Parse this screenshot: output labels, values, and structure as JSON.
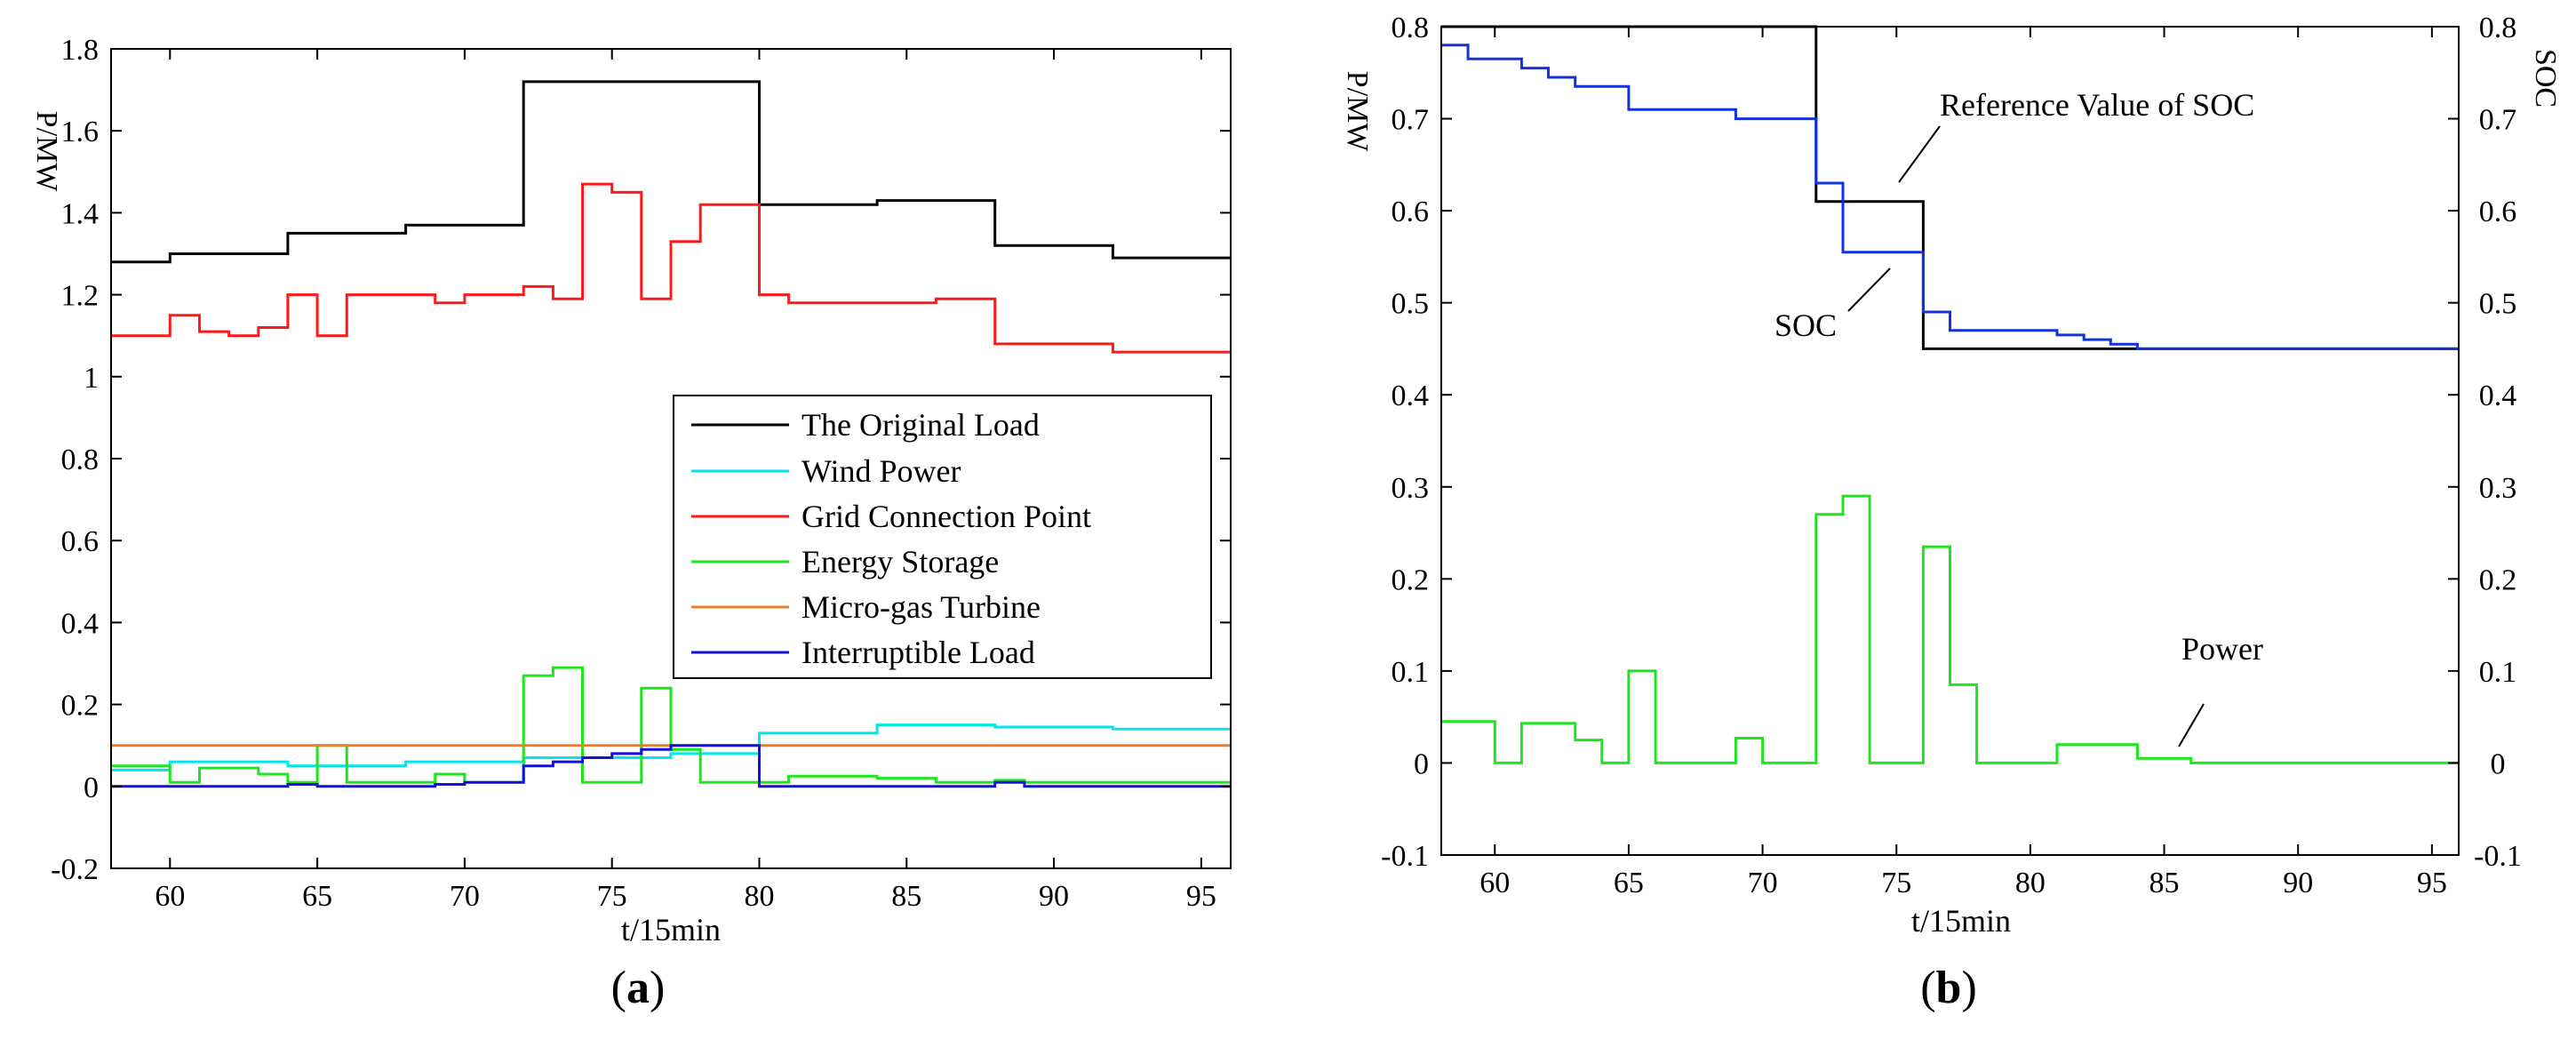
{
  "chart_data": [
    {
      "type": "line",
      "step": true,
      "panel_label": "(a)",
      "panel_letter": "a",
      "title": "",
      "xlabel": "t/15min",
      "ylabel": "P/MW",
      "xlim": [
        58,
        96
      ],
      "ylim": [
        -0.2,
        1.8
      ],
      "xticks": [
        60,
        65,
        70,
        75,
        80,
        85,
        90,
        95
      ],
      "yticks": [
        -0.2,
        0,
        0.2,
        0.4,
        0.6,
        0.8,
        1,
        1.2,
        1.4,
        1.6,
        1.8
      ],
      "ytick_labels": [
        "-0.2",
        "0",
        "0.2",
        "0.4",
        "0.6",
        "0.8",
        "1",
        "1.2",
        "1.4",
        "1.6",
        "1.8"
      ],
      "grid": false,
      "legend_position": "center-right",
      "series": [
        {
          "name": "The Original Load",
          "color": "#000000",
          "x": [
            58,
            60,
            64,
            68,
            72,
            80,
            84,
            88,
            92,
            96
          ],
          "y": [
            1.28,
            1.3,
            1.35,
            1.37,
            1.72,
            1.42,
            1.43,
            1.32,
            1.29,
            1.29
          ]
        },
        {
          "name": "Wind Power",
          "color": "#00e5ee",
          "x": [
            58,
            60,
            64,
            68,
            72,
            77,
            80,
            84,
            88,
            92,
            96
          ],
          "y": [
            0.04,
            0.06,
            0.05,
            0.06,
            0.07,
            0.08,
            0.13,
            0.15,
            0.145,
            0.14,
            0.14
          ]
        },
        {
          "name": "Grid Connection Point",
          "color": "#ff1a1a",
          "x": [
            58,
            60,
            61,
            62,
            63,
            64,
            65,
            66,
            67,
            69,
            70,
            72,
            73,
            74,
            75,
            76,
            77,
            78,
            80,
            81,
            84,
            86,
            88,
            92,
            96
          ],
          "y": [
            1.1,
            1.15,
            1.11,
            1.1,
            1.12,
            1.2,
            1.1,
            1.2,
            1.2,
            1.18,
            1.2,
            1.22,
            1.19,
            1.47,
            1.45,
            1.19,
            1.33,
            1.42,
            1.2,
            1.18,
            1.18,
            1.19,
            1.08,
            1.06,
            1.06
          ]
        },
        {
          "name": "Energy Storage",
          "color": "#1ee61e",
          "x": [
            58,
            60,
            61,
            63,
            64,
            65,
            66,
            69,
            70,
            72,
            73,
            74,
            76,
            77,
            78,
            80,
            81,
            84,
            86,
            88,
            89,
            96
          ],
          "y": [
            0.05,
            0.01,
            0.045,
            0.03,
            0.01,
            0.1,
            0.01,
            0.03,
            0.01,
            0.27,
            0.29,
            0.01,
            0.24,
            0.09,
            0.01,
            0.01,
            0.025,
            0.02,
            0.01,
            0.015,
            0.01,
            0.01
          ]
        },
        {
          "name": "Micro-gas Turbine",
          "color": "#e8822a",
          "x": [
            58,
            96
          ],
          "y": [
            0.1,
            0.1
          ]
        },
        {
          "name": "Interruptible Load",
          "color": "#1111dd",
          "x": [
            58,
            64,
            65,
            69,
            70,
            72,
            73,
            74,
            75,
            76,
            77,
            80,
            88,
            89,
            96
          ],
          "y": [
            0,
            0.005,
            0,
            0.005,
            0.01,
            0.05,
            0.06,
            0.07,
            0.08,
            0.09,
            0.1,
            0,
            0.01,
            0,
            0
          ]
        }
      ]
    },
    {
      "type": "line",
      "step": true,
      "panel_label": "(b)",
      "panel_letter": "b",
      "title": "",
      "xlabel": "t/15min",
      "ylabel": "P/MW",
      "ylabel_right": "SOC",
      "xlim": [
        58,
        96
      ],
      "ylim": [
        -0.1,
        0.8
      ],
      "ylim_right": [
        -0.1,
        0.8
      ],
      "xticks": [
        60,
        65,
        70,
        75,
        80,
        85,
        90,
        95
      ],
      "yticks": [
        -0.1,
        0,
        0.1,
        0.2,
        0.3,
        0.4,
        0.5,
        0.6,
        0.7,
        0.8
      ],
      "ytick_labels": [
        "-0.1",
        "0",
        "0.1",
        "0.2",
        "0.3",
        "0.4",
        "0.5",
        "0.6",
        "0.7",
        "0.8"
      ],
      "grid": false,
      "series": [
        {
          "name": "Reference Value of SOC",
          "color": "#000000",
          "x": [
            58,
            72,
            76,
            96
          ],
          "y": [
            0.8,
            0.61,
            0.45,
            0.45
          ]
        },
        {
          "name": "SOC",
          "color": "#1133dd",
          "x": [
            58,
            59,
            61,
            62,
            63,
            65,
            69,
            72,
            73,
            76,
            77,
            81,
            82,
            83,
            84,
            96
          ],
          "y": [
            0.78,
            0.765,
            0.755,
            0.745,
            0.735,
            0.71,
            0.7,
            0.63,
            0.555,
            0.49,
            0.47,
            0.465,
            0.46,
            0.455,
            0.45,
            0.45
          ]
        },
        {
          "name": "Power",
          "color": "#1ee61e",
          "x": [
            58,
            60,
            61,
            63,
            64,
            65,
            66,
            69,
            70,
            72,
            73,
            74,
            76,
            77,
            78,
            81,
            84,
            86,
            96
          ],
          "y": [
            0.045,
            0,
            0.043,
            0.025,
            0,
            0.1,
            0,
            0.027,
            0,
            0.27,
            0.29,
            0,
            0.235,
            0.085,
            0,
            0.02,
            0.005,
            0,
            0
          ]
        }
      ],
      "annotations": [
        {
          "text": "Reference Value of SOC",
          "x": 75,
          "y": 0.63
        },
        {
          "text": "SOC",
          "x": 74.5,
          "y": 0.55
        },
        {
          "text": "Power",
          "x": 85.5,
          "y": 0.02
        }
      ]
    }
  ]
}
